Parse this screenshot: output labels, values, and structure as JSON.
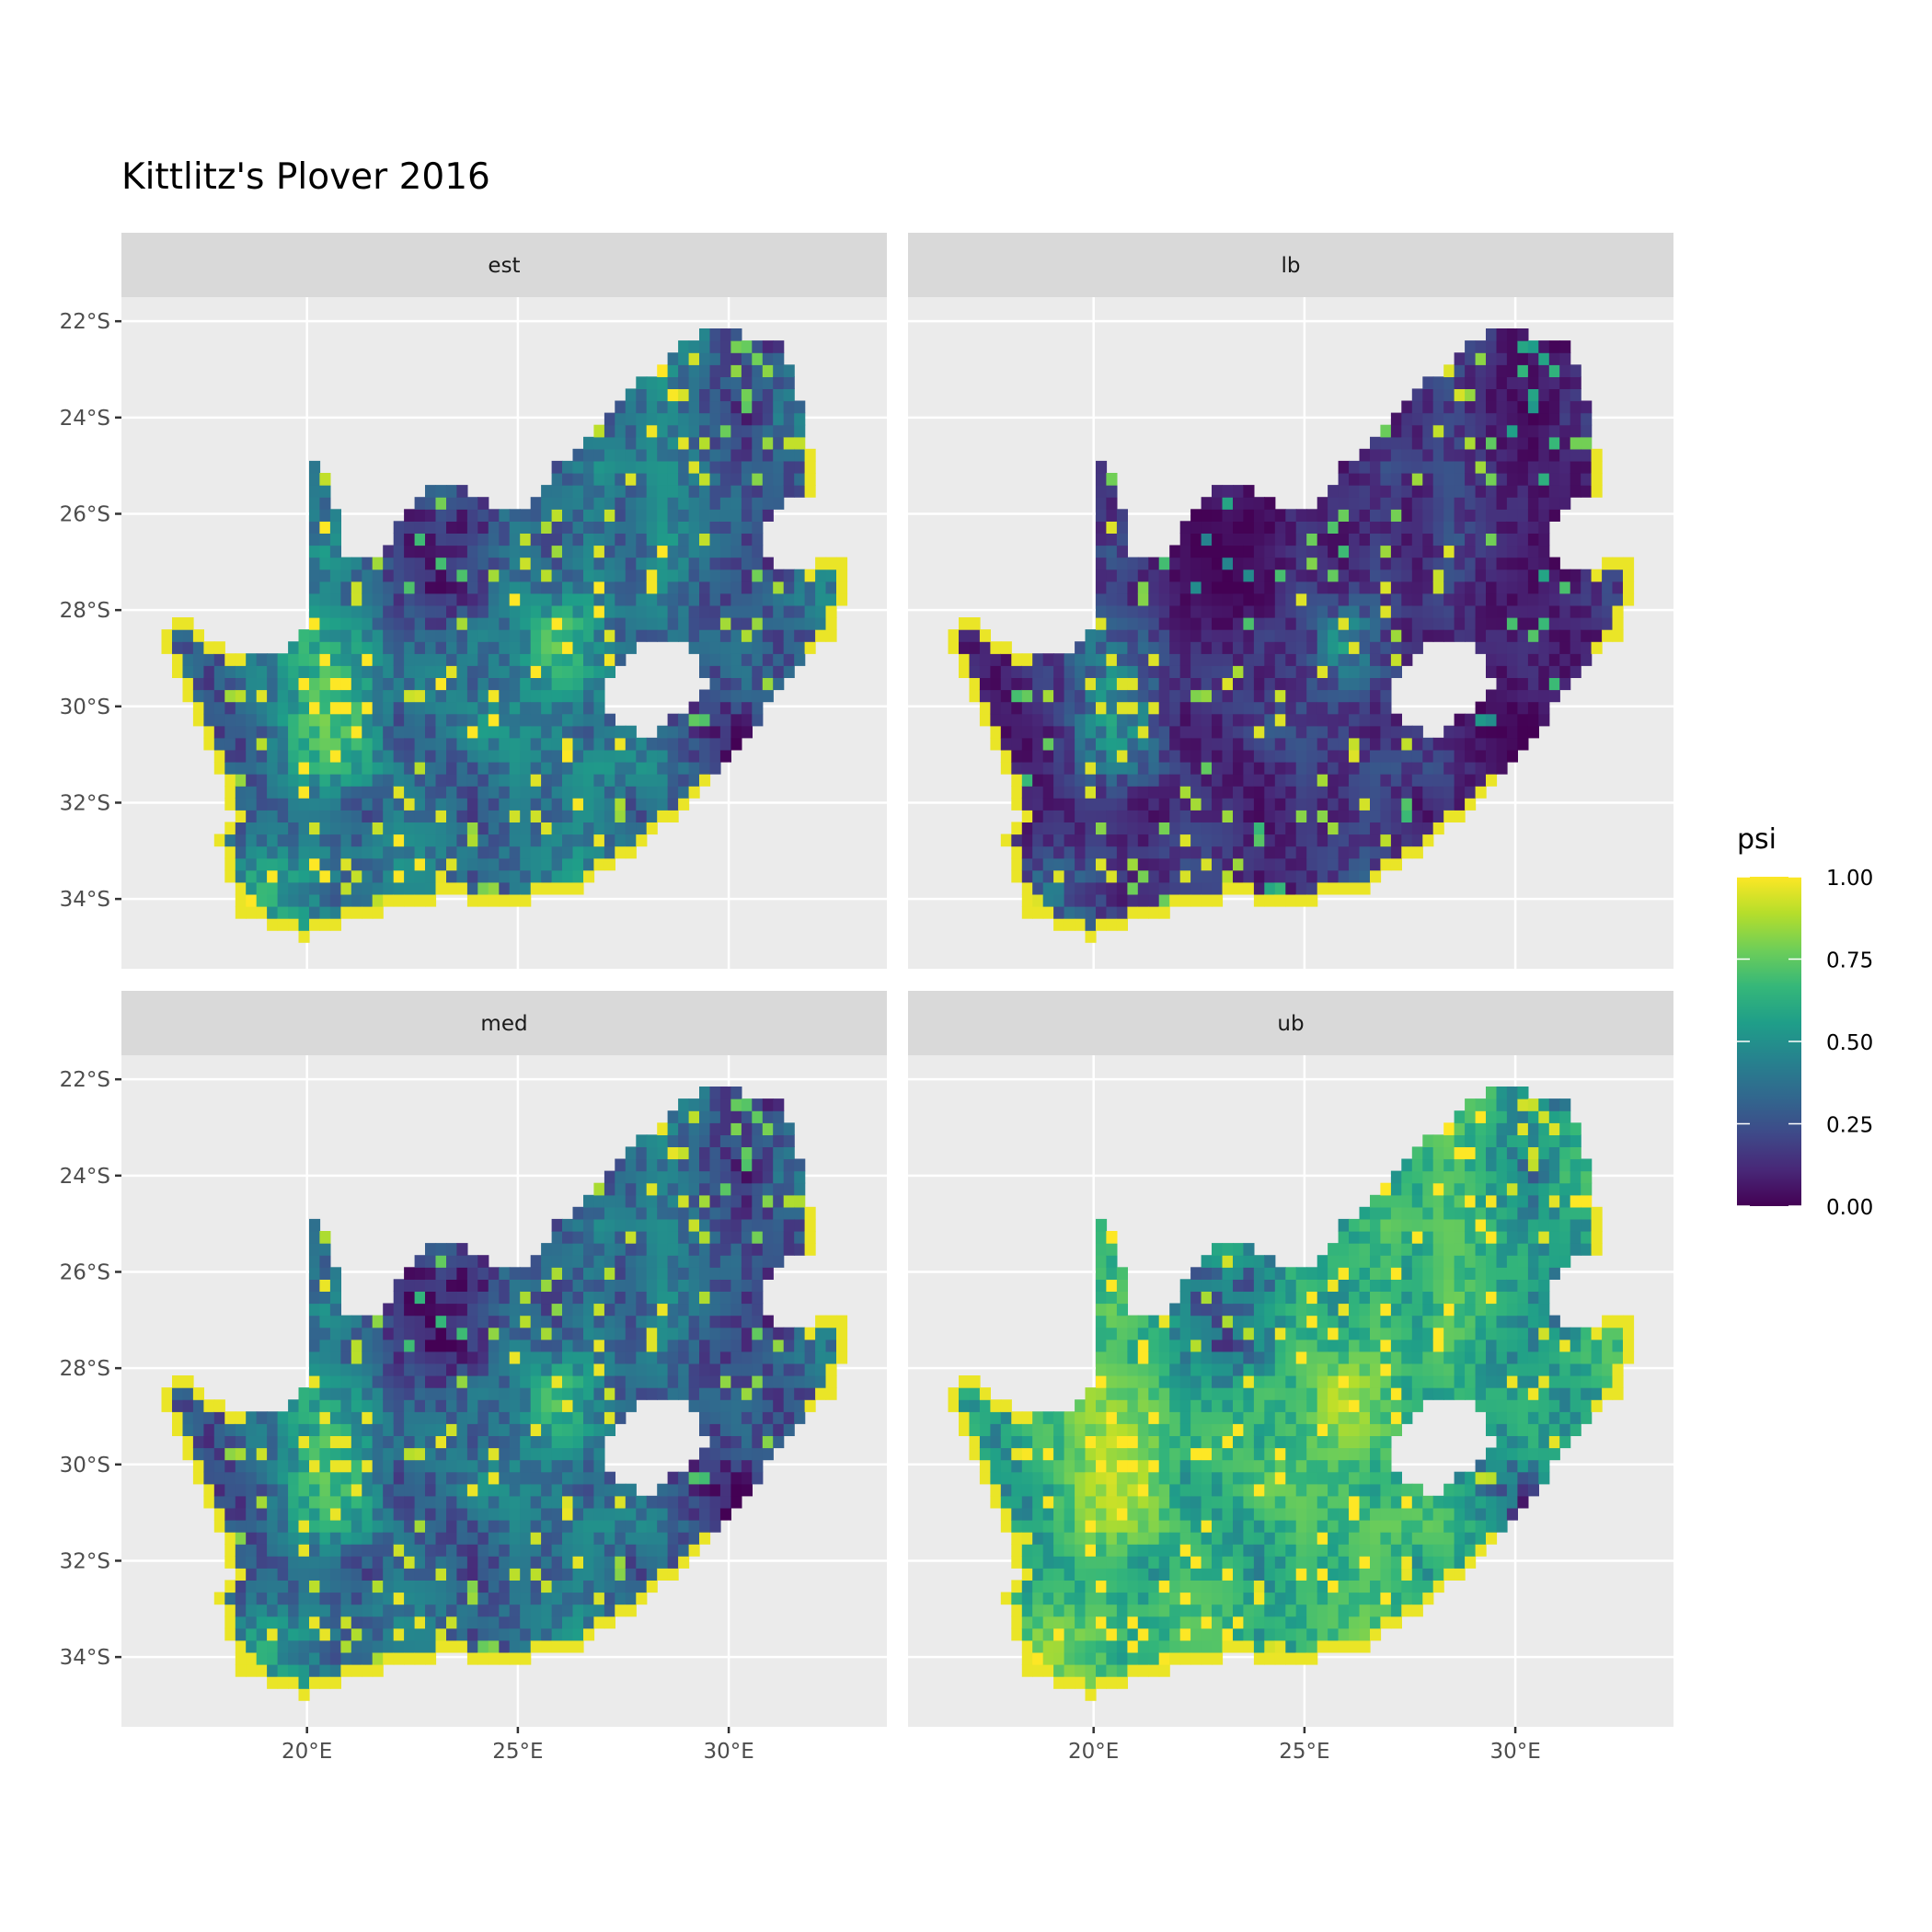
{
  "chart_data": {
    "type": "heatmap",
    "title": "Kittlitz's Plover 2016",
    "xlabel": "",
    "ylabel": "",
    "facets": [
      "est",
      "lb",
      "med",
      "ub"
    ],
    "x_ticks": [
      20,
      25,
      30
    ],
    "x_tick_labels": [
      "20°E",
      "25°E",
      "30°E"
    ],
    "y_ticks": [
      -22,
      -24,
      -26,
      -28,
      -30,
      -32,
      -34
    ],
    "y_tick_labels": [
      "22°S",
      "24°S",
      "26°S",
      "28°S",
      "30°S",
      "32°S",
      "34°S"
    ],
    "xlim": [
      15.6,
      33.75
    ],
    "ylim": [
      -35.45,
      -21.5
    ],
    "grid": true,
    "legend": {
      "title": "psi",
      "placement": "right",
      "breaks": [
        1.0,
        0.75,
        0.5,
        0.25,
        0.0
      ],
      "labels": [
        "1.00",
        "0.75",
        "0.50",
        "0.25",
        "0.00"
      ],
      "limits": [
        0,
        1
      ],
      "palette": [
        "#440154",
        "#482878",
        "#3e4a89",
        "#31688e",
        "#26828e",
        "#1f9e89",
        "#35b779",
        "#6ece58",
        "#b5de2b",
        "#fde725"
      ]
    },
    "colors": {
      "panel_bg": "#ebebeb",
      "strip_bg": "#d9d9d9",
      "grid": "#ffffff"
    }
  }
}
